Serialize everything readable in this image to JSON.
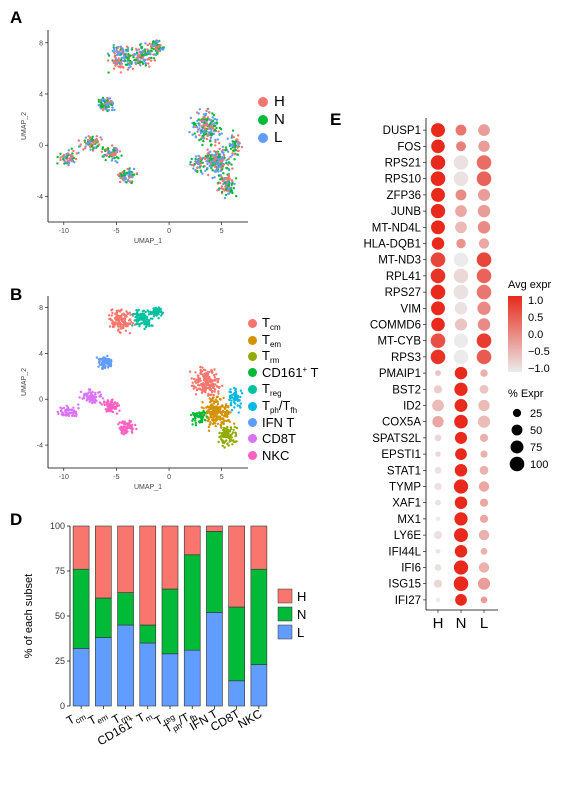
{
  "panels": {
    "a": "A",
    "b": "B",
    "d": "D",
    "e": "E"
  },
  "umap": {
    "xlabel": "UMAP_1",
    "ylabel": "UMAP_2",
    "xticks": [
      "-10",
      "-5",
      "0",
      "5"
    ],
    "yticks": [
      "8",
      "4",
      "0",
      "-4"
    ]
  },
  "legend_a": [
    {
      "label": "H",
      "color": "#F8766D"
    },
    {
      "label": "N",
      "color": "#00BA38"
    },
    {
      "label": "L",
      "color": "#619CFF"
    }
  ],
  "legend_b": [
    {
      "base": "T",
      "sub": "cm",
      "sup": "",
      "tail": "",
      "color": "#F8766D"
    },
    {
      "base": "T",
      "sub": "em",
      "sup": "",
      "tail": "",
      "color": "#D39200"
    },
    {
      "base": "T",
      "sub": "rm",
      "sup": "",
      "tail": "",
      "color": "#93AA00"
    },
    {
      "base": "CD161",
      "sub": "",
      "sup": "+",
      "tail": " T",
      "color": "#00BA38"
    },
    {
      "base": "T",
      "sub": "reg",
      "sup": "",
      "tail": "",
      "color": "#00C19F"
    },
    {
      "base": "T",
      "sub": "ph",
      "sup": "",
      "tail": "/T",
      "tail_sub": "fh",
      "color": "#00B9E3"
    },
    {
      "base": "IFN T",
      "sub": "",
      "sup": "",
      "tail": "",
      "color": "#619CFF"
    },
    {
      "base": "CD8T",
      "sub": "",
      "sup": "",
      "tail": "",
      "color": "#DB72FB"
    },
    {
      "base": "NKC",
      "sub": "",
      "sup": "",
      "tail": "",
      "color": "#FF61C3"
    }
  ],
  "chart_data": [
    {
      "type": "bar",
      "title": "",
      "ylabel": "% of each subset",
      "xlabel": "",
      "ylim": [
        0,
        100
      ],
      "yticks": [
        "0",
        "25",
        "50",
        "75",
        "100"
      ],
      "categories": [
        "Tcm",
        "Tem",
        "Trm",
        "CD161+ T",
        "Treg",
        "Tph/Tfh",
        "IFN T",
        "CD8T",
        "NKC"
      ],
      "category_labels": [
        {
          "base": "T",
          "sub": "cm"
        },
        {
          "base": "T",
          "sub": "em"
        },
        {
          "base": "T",
          "sub": "rm"
        },
        {
          "base": "CD161",
          "sup": "+",
          "tail": " T",
          "tail_sub": "m"
        },
        {
          "base": "T",
          "sub": "reg"
        },
        {
          "base": "T",
          "sub": "ph",
          "tail": "/T",
          "tail_sub": "fh"
        },
        {
          "base": "IFN T"
        },
        {
          "base": "CD8T"
        },
        {
          "base": "NKC"
        }
      ],
      "stacked": true,
      "series": [
        {
          "name": "L",
          "color": "#619CFF",
          "values": [
            32,
            38,
            45,
            35,
            29,
            31,
            52,
            14,
            23
          ]
        },
        {
          "name": "N",
          "color": "#00BA38",
          "values": [
            44,
            22,
            18,
            10,
            36,
            53,
            45,
            41,
            53
          ]
        },
        {
          "name": "H",
          "color": "#F8766D",
          "values": [
            24,
            40,
            37,
            55,
            35,
            16,
            3,
            45,
            24
          ]
        }
      ],
      "legend": [
        {
          "label": "H",
          "color": "#F8766D"
        },
        {
          "label": "N",
          "color": "#00BA38"
        },
        {
          "label": "L",
          "color": "#619CFF"
        }
      ]
    },
    {
      "type": "dotplot",
      "title": "",
      "x": [
        "H",
        "N",
        "L"
      ],
      "genes": [
        "DUSP1",
        "FOS",
        "RPS21",
        "RPS10",
        "ZFP36",
        "JUNB",
        "MT-ND4L",
        "HLA-DQB1",
        "MT-ND3",
        "RPL41",
        "RPS27",
        "VIM",
        "COMMD6",
        "MT-CYB",
        "RPS3",
        "PMAIP1",
        "BST2",
        "ID2",
        "COX5A",
        "SPATS2L",
        "EPSTI1",
        "STAT1",
        "TYMP",
        "XAF1",
        "MX1",
        "LY6E",
        "IFI44L",
        "IFI6",
        "ISG15",
        "IFI27"
      ],
      "avg_expr": [
        [
          1.0,
          0.2,
          -0.2
        ],
        [
          1.0,
          0.1,
          -0.2
        ],
        [
          1.0,
          -0.9,
          0.3
        ],
        [
          1.0,
          -0.9,
          0.4
        ],
        [
          1.0,
          0.0,
          -0.2
        ],
        [
          1.0,
          -0.3,
          -0.2
        ],
        [
          1.0,
          -0.5,
          0.0
        ],
        [
          1.0,
          -0.1,
          -0.3
        ],
        [
          0.7,
          -1.0,
          0.7
        ],
        [
          0.9,
          -0.8,
          0.4
        ],
        [
          1.0,
          -0.9,
          0.2
        ],
        [
          1.0,
          -0.9,
          0.0
        ],
        [
          1.0,
          -0.6,
          0.0
        ],
        [
          0.6,
          -1.0,
          0.8
        ],
        [
          0.9,
          -1.0,
          0.5
        ],
        [
          -0.6,
          1.0,
          -0.4
        ],
        [
          -0.7,
          1.0,
          -0.6
        ],
        [
          -0.5,
          1.0,
          -0.5
        ],
        [
          -0.3,
          1.0,
          -0.5
        ],
        [
          -0.8,
          1.0,
          -0.4
        ],
        [
          -0.8,
          1.0,
          -0.4
        ],
        [
          -0.9,
          1.0,
          -0.4
        ],
        [
          -0.9,
          1.0,
          -0.3
        ],
        [
          -0.9,
          1.0,
          -0.3
        ],
        [
          -1.0,
          1.0,
          -0.3
        ],
        [
          -0.9,
          1.0,
          -0.4
        ],
        [
          -0.9,
          1.0,
          -0.4
        ],
        [
          -0.9,
          1.0,
          -0.4
        ],
        [
          -0.8,
          1.0,
          -0.2
        ],
        [
          -1.0,
          1.0,
          -0.2
        ]
      ],
      "pct_expr": [
        [
          90,
          50,
          60
        ],
        [
          85,
          40,
          55
        ],
        [
          100,
          100,
          100
        ],
        [
          100,
          100,
          100
        ],
        [
          90,
          50,
          65
        ],
        [
          95,
          60,
          70
        ],
        [
          90,
          60,
          70
        ],
        [
          70,
          35,
          45
        ],
        [
          100,
          95,
          100
        ],
        [
          100,
          100,
          100
        ],
        [
          100,
          100,
          100
        ],
        [
          90,
          70,
          80
        ],
        [
          85,
          65,
          70
        ],
        [
          100,
          95,
          100
        ],
        [
          100,
          100,
          100
        ],
        [
          10,
          70,
          20
        ],
        [
          25,
          80,
          30
        ],
        [
          60,
          75,
          55
        ],
        [
          55,
          85,
          65
        ],
        [
          15,
          65,
          25
        ],
        [
          8,
          60,
          18
        ],
        [
          15,
          70,
          30
        ],
        [
          20,
          95,
          45
        ],
        [
          10,
          70,
          25
        ],
        [
          5,
          80,
          25
        ],
        [
          25,
          90,
          45
        ],
        [
          5,
          70,
          15
        ],
        [
          15,
          95,
          45
        ],
        [
          25,
          100,
          65
        ],
        [
          5,
          60,
          15
        ]
      ],
      "color_legend": {
        "title": "Avg expr",
        "ticks": [
          "1.0",
          "0.5",
          "0.0",
          "−0.5",
          "−1.0"
        ],
        "low": "#EBEBEB",
        "high": "#E8291C"
      },
      "size_legend": {
        "title": "% Expr",
        "values": [
          "25",
          "50",
          "75",
          "100"
        ]
      }
    }
  ]
}
